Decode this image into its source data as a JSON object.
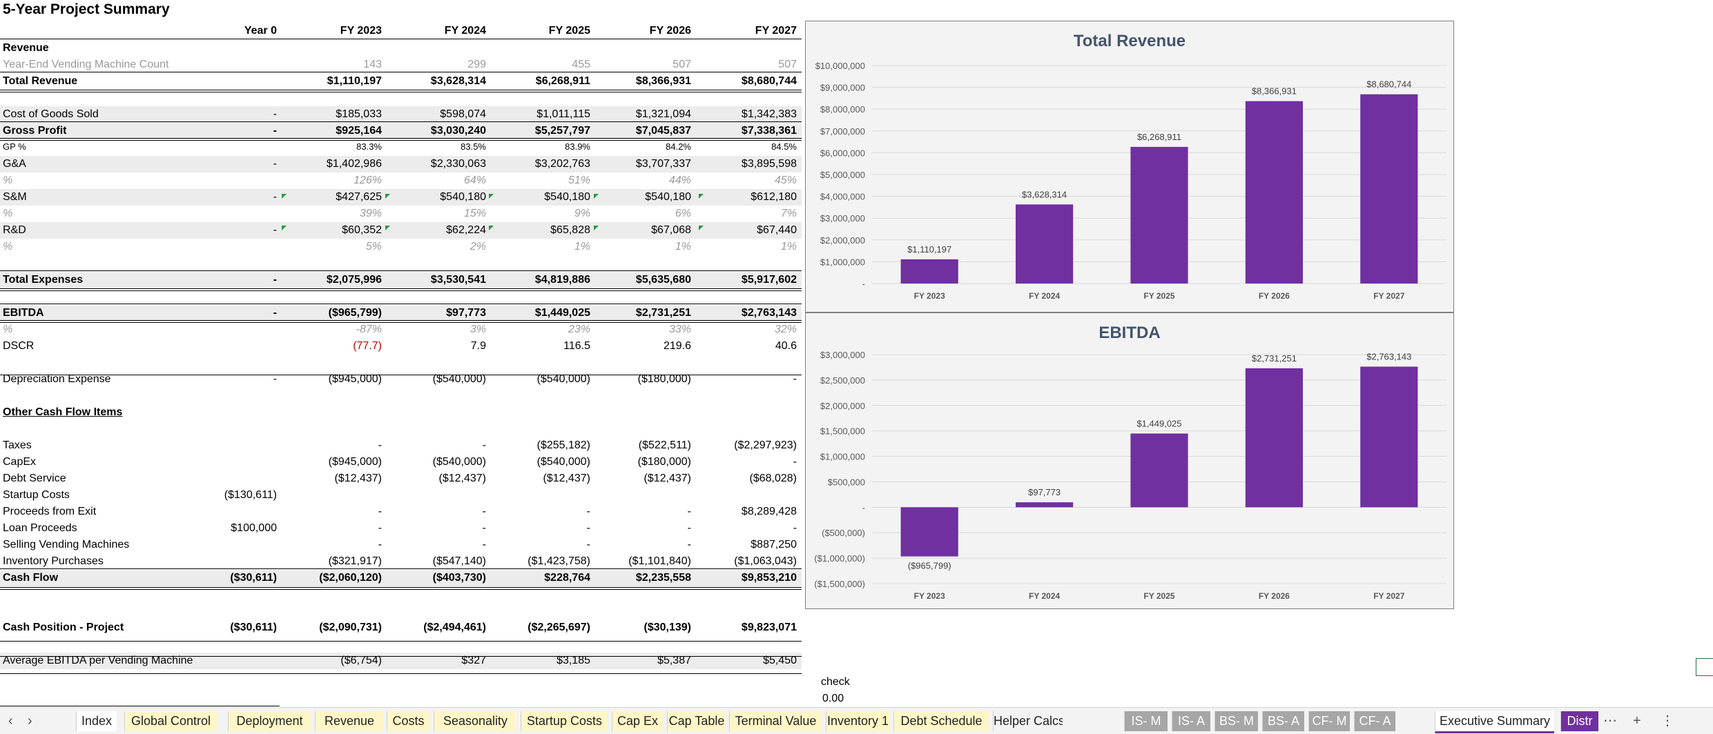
{
  "title": "5-Year Project Summary",
  "headers": [
    "Year 0",
    "FY 2023",
    "FY 2024",
    "FY 2025",
    "FY 2026",
    "FY 2027"
  ],
  "rows": [
    {
      "label": "Revenue",
      "vals": [
        "",
        "",
        "",
        "",
        "",
        ""
      ]
    },
    {
      "label": "Year-End Vending Machine Count",
      "vals": [
        "",
        "143",
        "299",
        "455",
        "507",
        "507"
      ]
    },
    {
      "label": "Total Revenue",
      "vals": [
        "",
        "$1,110,197",
        "$3,628,314",
        "$6,268,911",
        "$8,366,931",
        "$8,680,744"
      ]
    },
    {
      "label": "Cost of Goods Sold",
      "vals": [
        "-",
        "$185,033",
        "$598,074",
        "$1,011,115",
        "$1,321,094",
        "$1,342,383"
      ]
    },
    {
      "label": "Gross Profit",
      "vals": [
        "-",
        "$925,164",
        "$3,030,240",
        "$5,257,797",
        "$7,045,837",
        "$7,338,361"
      ]
    },
    {
      "label": "GP %",
      "vals": [
        "",
        "83.3%",
        "83.5%",
        "83.9%",
        "84.2%",
        "84.5%"
      ]
    },
    {
      "label": "G&A",
      "vals": [
        "-",
        "$1,402,986",
        "$2,330,063",
        "$3,202,763",
        "$3,707,337",
        "$3,895,598"
      ]
    },
    {
      "label": "%",
      "vals": [
        "",
        "126%",
        "64%",
        "51%",
        "44%",
        "45%"
      ]
    },
    {
      "label": "S&M",
      "vals": [
        "-",
        "$427,625",
        "$540,180",
        "$540,180",
        "$540,180",
        "$612,180"
      ]
    },
    {
      "label": "%",
      "vals": [
        "",
        "39%",
        "15%",
        "9%",
        "6%",
        "7%"
      ]
    },
    {
      "label": "R&D",
      "vals": [
        "-",
        "$60,352",
        "$62,224",
        "$65,828",
        "$67,068",
        "$67,440"
      ]
    },
    {
      "label": "%",
      "vals": [
        "",
        "5%",
        "2%",
        "1%",
        "1%",
        "1%"
      ]
    },
    {
      "label": "Total Expenses",
      "vals": [
        "-",
        "$2,075,996",
        "$3,530,541",
        "$4,819,886",
        "$5,635,680",
        "$5,917,602"
      ]
    },
    {
      "label": "EBITDA",
      "vals": [
        "-",
        "($965,799)",
        "$97,773",
        "$1,449,025",
        "$2,731,251",
        "$2,763,143"
      ]
    },
    {
      "label": "%",
      "vals": [
        "",
        "-87%",
        "3%",
        "23%",
        "33%",
        "32%"
      ]
    },
    {
      "label": "DSCR",
      "vals": [
        "",
        "(77.7)",
        "7.9",
        "116.5",
        "219.6",
        "40.6"
      ]
    },
    {
      "label": "Depreciation Expense",
      "vals": [
        "-",
        "($945,000)",
        "($540,000)",
        "($540,000)",
        "($180,000)",
        "-"
      ]
    },
    {
      "label": "Other Cash Flow Items",
      "vals": [
        "",
        "",
        "",
        "",
        "",
        ""
      ]
    },
    {
      "label": "Taxes",
      "vals": [
        "",
        "-",
        "-",
        "($255,182)",
        "($522,511)",
        "($2,297,923)"
      ]
    },
    {
      "label": "CapEx",
      "vals": [
        "",
        "($945,000)",
        "($540,000)",
        "($540,000)",
        "($180,000)",
        "-"
      ]
    },
    {
      "label": "Debt Service",
      "vals": [
        "",
        "($12,437)",
        "($12,437)",
        "($12,437)",
        "($12,437)",
        "($68,028)"
      ]
    },
    {
      "label": "Startup Costs",
      "vals": [
        "($130,611)",
        "",
        "",
        "",
        "",
        ""
      ]
    },
    {
      "label": "Proceeds from Exit",
      "vals": [
        "",
        "-",
        "-",
        "-",
        "-",
        "$8,289,428"
      ]
    },
    {
      "label": "Loan Proceeds",
      "vals": [
        "$100,000",
        "-",
        "-",
        "-",
        "-",
        "-"
      ]
    },
    {
      "label": "Selling Vending Machines",
      "vals": [
        "",
        "-",
        "-",
        "-",
        "-",
        "$887,250"
      ]
    },
    {
      "label": "Inventory Purchases",
      "vals": [
        "",
        "($321,917)",
        "($547,140)",
        "($1,423,758)",
        "($1,101,840)",
        "($1,063,043)"
      ]
    },
    {
      "label": "Cash Flow",
      "vals": [
        "($30,611)",
        "($2,060,120)",
        "($403,730)",
        "$228,764",
        "$2,235,558",
        "$9,853,210"
      ]
    },
    {
      "label": "Cash Position - Project",
      "vals": [
        "($30,611)",
        "($2,090,731)",
        "($2,494,461)",
        "($2,265,697)",
        "($30,139)",
        "$9,823,071"
      ]
    },
    {
      "label": "Average EBITDA per Vending Machine",
      "vals": [
        "",
        "($6,754)",
        "$327",
        "$3,185",
        "$5,387",
        "$5,450"
      ]
    }
  ],
  "check": {
    "label": "check",
    "value": "0.00"
  },
  "colors": {
    "bar": "#7030a0",
    "chart_bg": "#f3f3f3",
    "title": "#44546a",
    "tab_yellow": "#fff6c8",
    "tab_gray": "#a6a6a6",
    "red": "#c00000",
    "flag": "#1f9e3a"
  },
  "chart_data": [
    {
      "type": "bar",
      "title": "Total Revenue",
      "categories": [
        "FY 2023",
        "FY 2024",
        "FY 2025",
        "FY 2026",
        "FY 2027"
      ],
      "values": [
        1110197,
        3628314,
        6268911,
        8366931,
        8680744
      ],
      "data_labels": [
        "$1,110,197",
        "$3,628,314",
        "$6,268,911",
        "$8,366,931",
        "$8,680,744"
      ],
      "yticks": [
        0,
        1000000,
        2000000,
        3000000,
        4000000,
        5000000,
        6000000,
        7000000,
        8000000,
        9000000,
        10000000
      ],
      "ytick_labels": [
        "-",
        "$1,000,000",
        "$2,000,000",
        "$3,000,000",
        "$4,000,000",
        "$5,000,000",
        "$6,000,000",
        "$7,000,000",
        "$8,000,000",
        "$9,000,000",
        "$10,000,000"
      ],
      "ylim": [
        0,
        10000000
      ],
      "grid": true
    },
    {
      "type": "bar",
      "title": "EBITDA",
      "categories": [
        "FY 2023",
        "FY 2024",
        "FY 2025",
        "FY 2026",
        "FY 2027"
      ],
      "values": [
        -965799,
        97773,
        1449025,
        2731251,
        2763143
      ],
      "data_labels": [
        "($965,799)",
        "$97,773",
        "$1,449,025",
        "$2,731,251",
        "$2,763,143"
      ],
      "yticks": [
        -1500000,
        -1000000,
        -500000,
        0,
        500000,
        1000000,
        1500000,
        2000000,
        2500000,
        3000000
      ],
      "ytick_labels": [
        "($1,500,000)",
        "($1,000,000)",
        "($500,000)",
        "-",
        "$500,000",
        "$1,000,000",
        "$1,500,000",
        "$2,000,000",
        "$2,500,000",
        "$3,000,000"
      ],
      "ylim": [
        -1500000,
        3000000
      ],
      "grid": true
    }
  ],
  "tabs": [
    "Index",
    "Global Control",
    "Deployment",
    "Revenue",
    "Costs",
    "Seasonality",
    "Startup Costs",
    "Cap Ex",
    "Cap Table",
    "Terminal Value",
    "Inventory 1",
    "Debt Schedule",
    "Helper Calcs",
    "IS- M",
    "IS- A",
    "BS- M",
    "BS- A",
    "CF- M",
    "CF- A",
    "Executive Summary",
    "Distr"
  ],
  "active_tab": "Executive Summary",
  "icons": {
    "prev": "chevron-left-icon",
    "next": "chevron-right-icon",
    "more": "more-icon",
    "add": "add-sheet-icon",
    "menu": "vertical-more-icon"
  }
}
